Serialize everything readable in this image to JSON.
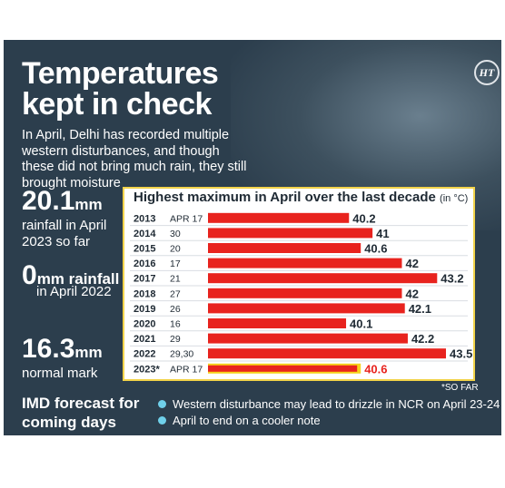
{
  "headline": "Temperatures\nkept in check",
  "subhead": "In April, Delhi has recorded multiple western disturbances, and though these did not bring much rain, they still brought moisture",
  "stats": [
    {
      "value": "20.1",
      "unit": "mm",
      "desc": "rainfall in April 2023 so far"
    },
    {
      "value": "0",
      "unit": "mm rainfall",
      "desc": "in April 2022"
    },
    {
      "value": "16.3",
      "unit": "mm",
      "desc": "normal mark"
    }
  ],
  "forecast": {
    "title": "IMD forecast for\ncoming days",
    "items": [
      "Western disturbance may lead to drizzle in NCR on April 23-24",
      "April to end on a cooler note"
    ]
  },
  "footnote": "*SO FAR",
  "brand": "HT",
  "colors": {
    "background": "#2c3e4d",
    "bar": "#e8231e",
    "highlight_bar": "#f6d21c",
    "chart_border": "#f2d34a",
    "bullet": "#6fd0ea"
  },
  "chart_data": {
    "type": "bar",
    "title": "Highest maximum in April over the last decade",
    "unit_label": "(in °C)",
    "categories": [
      "2013",
      "2014",
      "2015",
      "2016",
      "2017",
      "2018",
      "2019",
      "2020",
      "2021",
      "2022",
      "2023*"
    ],
    "dates": [
      "APR 17",
      "30",
      "20",
      "17",
      "21",
      "27",
      "26",
      "16",
      "29",
      "29,30",
      "APR 17"
    ],
    "values": [
      40.2,
      41,
      40.6,
      42,
      43.2,
      42,
      42.1,
      40.1,
      42.2,
      43.5,
      40.6
    ],
    "value_labels": [
      "40.2",
      "41",
      "40.6",
      "42",
      "43.2",
      "42",
      "42.1",
      "40.1",
      "42.2",
      "43.5",
      "40.6"
    ],
    "highlight_index": 10,
    "orientation": "horizontal"
  }
}
